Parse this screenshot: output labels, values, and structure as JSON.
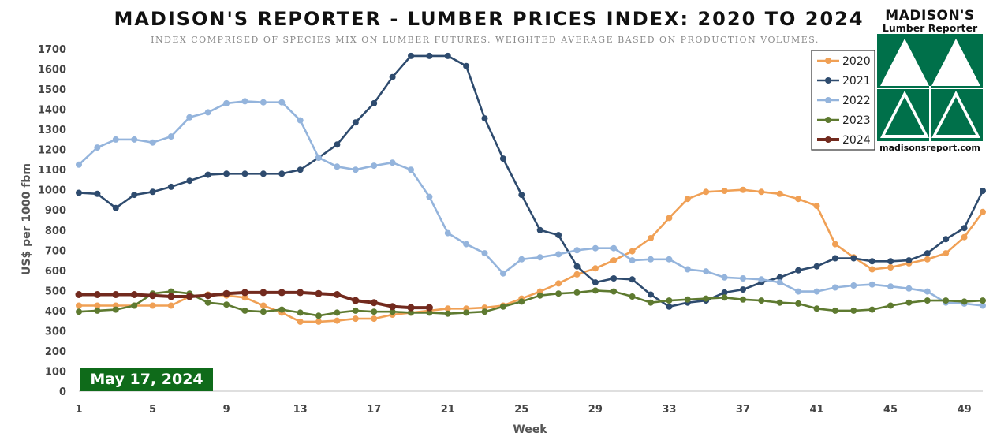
{
  "title": "MADISON'S REPORTER - LUMBER PRICES INDEX: 2020 TO 2024",
  "subtitle": "INDEX COMPRISED OF SPECIES MIX ON LUMBER FUTURES. WEIGHTED AVERAGE BASED ON PRODUCTION VOLUMES.",
  "date_badge": "May 17, 2024",
  "logo": {
    "name": "MADISON'S",
    "subtitle": "Lumber Reporter",
    "url": "madisonsreport.com",
    "color": "#00704a"
  },
  "chart_data": {
    "type": "line",
    "xlabel": "Week",
    "ylabel": "US$ per 1000 fbm",
    "xlim": [
      1,
      50
    ],
    "ylim": [
      0,
      1700
    ],
    "x_ticks": [
      1,
      5,
      9,
      13,
      17,
      21,
      25,
      29,
      33,
      37,
      41,
      45,
      49
    ],
    "y_ticks": [
      0,
      100,
      200,
      300,
      400,
      500,
      600,
      700,
      800,
      900,
      1000,
      1100,
      1200,
      1300,
      1400,
      1500,
      1600,
      1700
    ],
    "grid": false,
    "legend": "top-right",
    "series": [
      {
        "name": "2020",
        "color": "#f0a055",
        "values": [
          425,
          425,
          425,
          425,
          425,
          425,
          470,
          480,
          475,
          465,
          425,
          390,
          345,
          345,
          350,
          360,
          360,
          380,
          390,
          400,
          410,
          410,
          415,
          425,
          460,
          495,
          535,
          580,
          610,
          650,
          695,
          760,
          860,
          955,
          990,
          995,
          1000,
          990,
          980,
          955,
          920,
          730,
          665,
          605,
          615,
          635,
          655,
          685,
          765,
          890
        ]
      },
      {
        "name": "2021",
        "color": "#2e4b6e",
        "values": [
          985,
          980,
          910,
          975,
          990,
          1015,
          1045,
          1075,
          1080,
          1080,
          1080,
          1080,
          1100,
          1160,
          1225,
          1335,
          1430,
          1560,
          1665,
          1665,
          1665,
          1615,
          1355,
          1155,
          975,
          800,
          775,
          620,
          540,
          560,
          555,
          480,
          420,
          440,
          450,
          490,
          505,
          540,
          565,
          600,
          620,
          660,
          660,
          645,
          645,
          650,
          685,
          755,
          810,
          995
        ]
      },
      {
        "name": "2022",
        "color": "#94b4dc",
        "values": [
          1125,
          1210,
          1250,
          1250,
          1235,
          1265,
          1360,
          1385,
          1430,
          1440,
          1435,
          1435,
          1345,
          1160,
          1115,
          1100,
          1120,
          1135,
          1100,
          965,
          785,
          730,
          685,
          585,
          655,
          665,
          680,
          700,
          710,
          710,
          650,
          655,
          655,
          605,
          595,
          565,
          560,
          555,
          540,
          495,
          495,
          515,
          525,
          530,
          520,
          510,
          495,
          440,
          435,
          425
        ]
      },
      {
        "name": "2023",
        "color": "#5e7a30",
        "values": [
          395,
          400,
          405,
          425,
          485,
          495,
          485,
          440,
          430,
          400,
          395,
          405,
          390,
          375,
          390,
          400,
          395,
          395,
          390,
          390,
          385,
          390,
          395,
          420,
          445,
          475,
          485,
          490,
          500,
          495,
          470,
          440,
          450,
          455,
          460,
          465,
          455,
          450,
          440,
          435,
          410,
          400,
          400,
          405,
          425,
          440,
          450,
          450,
          445,
          450
        ]
      },
      {
        "name": "2024",
        "color": "#722a1e",
        "values": [
          480,
          480,
          480,
          480,
          475,
          470,
          470,
          475,
          485,
          490,
          490,
          490,
          490,
          485,
          480,
          450,
          440,
          420,
          415,
          415
        ]
      }
    ]
  }
}
